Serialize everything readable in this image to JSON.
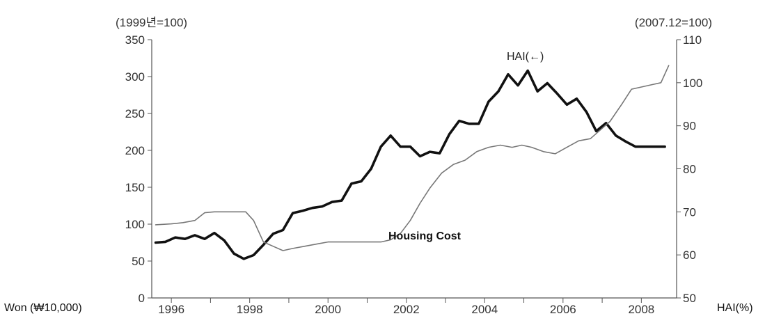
{
  "chart_data": {
    "type": "line",
    "left_unit": "(1999년=100)",
    "right_unit": "(2007.12=100)",
    "ylabel_left": "Won (₩10,000)",
    "ylabel_right": "HAI(%)",
    "left_axis": {
      "ylim": [
        0,
        350
      ],
      "ticks": [
        0,
        50,
        100,
        150,
        200,
        250,
        300,
        350
      ]
    },
    "right_axis": {
      "ylim": [
        50,
        110
      ],
      "ticks": [
        50,
        60,
        70,
        80,
        90,
        100,
        110
      ]
    },
    "xlim": [
      1995.5,
      2008.9
    ],
    "x_ticks": [
      1996,
      1998,
      2000,
      2002,
      2004,
      2006,
      2008
    ],
    "x_tick_labels": [
      "1996",
      "1998",
      "2000",
      "2002",
      "2004",
      "2006",
      "2008"
    ],
    "grid": false,
    "series": [
      {
        "name": "HAI(←)",
        "axis": "left",
        "color": "#111111",
        "x": [
          1995.6,
          1995.85,
          1996.1,
          1996.35,
          1996.6,
          1996.85,
          1997.1,
          1997.35,
          1997.6,
          1997.85,
          1998.1,
          1998.35,
          1998.6,
          1998.85,
          1999.1,
          1999.35,
          1999.6,
          1999.85,
          2000.1,
          2000.35,
          2000.6,
          2000.85,
          2001.1,
          2001.35,
          2001.6,
          2001.85,
          2002.1,
          2002.35,
          2002.6,
          2002.85,
          2003.1,
          2003.35,
          2003.6,
          2003.85,
          2004.1,
          2004.35,
          2004.6,
          2004.85,
          2005.1,
          2005.35,
          2005.6,
          2005.85,
          2006.1,
          2006.35,
          2006.6,
          2006.85,
          2007.1,
          2007.35,
          2007.6,
          2007.85,
          2008.1,
          2008.35,
          2008.6
        ],
        "y": [
          75,
          76,
          82,
          80,
          85,
          80,
          88,
          78,
          60,
          53,
          58,
          72,
          87,
          92,
          115,
          118,
          122,
          124,
          130,
          132,
          155,
          158,
          175,
          205,
          220,
          205,
          205,
          192,
          198,
          196,
          222,
          240,
          236,
          236,
          266,
          280,
          303,
          288,
          308,
          280,
          291,
          277,
          262,
          270,
          252,
          226,
          237,
          220,
          212,
          205,
          205,
          205,
          205
        ]
      },
      {
        "name": "Housing Cost",
        "axis": "right",
        "color": "#777777",
        "x": [
          1995.6,
          1996.0,
          1996.3,
          1996.6,
          1996.85,
          1997.1,
          1997.4,
          1997.65,
          1997.9,
          1998.1,
          1998.35,
          1998.6,
          1998.85,
          1999.1,
          1999.4,
          1999.7,
          2000.0,
          2000.3,
          2000.6,
          2000.9,
          2001.1,
          2001.35,
          2001.6,
          2001.85,
          2002.1,
          2002.35,
          2002.6,
          2002.9,
          2003.2,
          2003.5,
          2003.8,
          2004.1,
          2004.4,
          2004.7,
          2004.95,
          2005.2,
          2005.5,
          2005.8,
          2006.1,
          2006.4,
          2006.7,
          2006.95,
          2007.2,
          2007.5,
          2007.75,
          2008.0,
          2008.25,
          2008.5,
          2008.7
        ],
        "y": [
          67,
          67.2,
          67.5,
          68,
          69.8,
          70,
          70,
          70,
          70,
          68,
          63,
          62,
          61,
          61.5,
          62,
          62.5,
          63,
          63,
          63,
          63,
          63,
          63,
          63.5,
          65,
          68,
          72,
          75.5,
          79,
          81,
          82,
          84,
          85,
          85.5,
          85,
          85.5,
          85,
          84,
          83.5,
          85,
          86.5,
          87,
          89,
          91,
          95,
          98.5,
          99,
          99.5,
          100,
          104
        ]
      }
    ],
    "annotations": [
      {
        "text": "HAI(←)",
        "series": "HAI(←)"
      },
      {
        "text": "Housing Cost",
        "series": "Housing Cost"
      }
    ]
  }
}
